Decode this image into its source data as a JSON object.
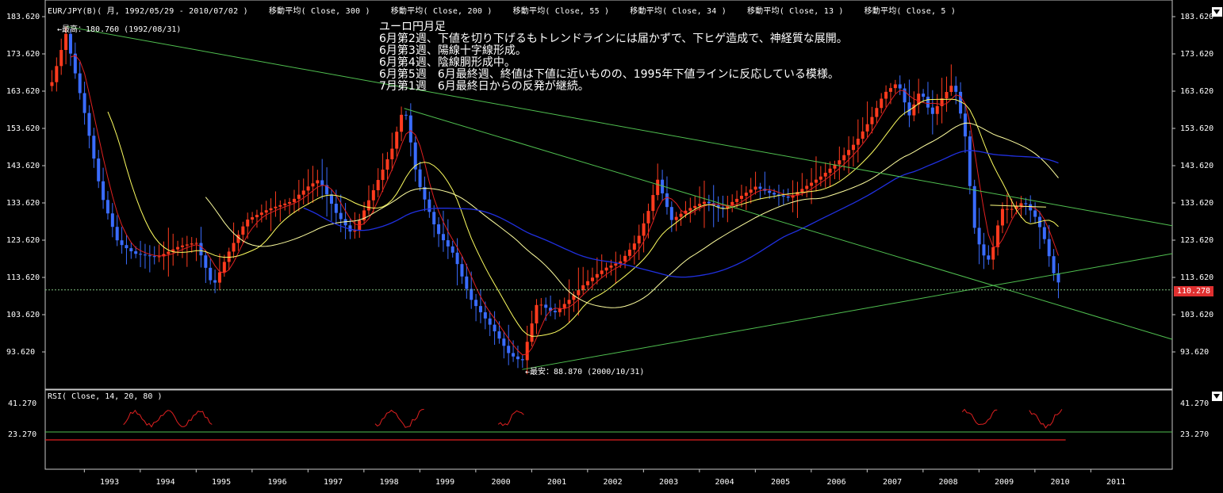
{
  "header": {
    "symbol": "EUR/JPY(B)( 月, 1992/05/29 - 2010/07/02 )",
    "ma_labels": [
      "移動平均( Close, 300 )",
      "移動平均( Close, 200 )",
      "移動平均( Close, 55 )",
      "移動平均( Close, 34 )",
      "移動平均( Close, 13 )",
      "移動平均( Close, 5 )"
    ]
  },
  "annotation": {
    "lines": [
      "ユーロ円月足",
      "6月第2週、下値を切り下げるもトレンドラインには届かずで、下ヒゲ造成で、神経質な展開。",
      "6月第3週、陽線十字線形成。",
      "6月第4週、陰線胴形成中。",
      "6月第5週　6月最終週、終値は下値に近いものの、1995年下値ラインに反応している模様。",
      "7月第1週　6月最終日からの反発が継続。"
    ]
  },
  "markers": {
    "high": "←最高：180.760 (1992/08/31)",
    "low": "←最安：88.870 (2000/10/31)"
  },
  "current_price": "110.278",
  "rsi": {
    "header": "RSI( Close, 14, 20, 80 )",
    "tick_labels": [
      "41.270",
      "23.270"
    ]
  },
  "colors": {
    "up": "#ff3b1e",
    "down": "#3a6cff",
    "ma5": "#e02020",
    "ma13": "#ffff60",
    "ma34": "#ffffa0",
    "ma55": "#2030e0",
    "trendline": "#50c050",
    "grid_frame": "#c8c8c8"
  },
  "chart_data": {
    "type": "candlestick",
    "title": "EUR/JPY(B)( 月, 1992/05/29 - 2010/07/02 )",
    "price_ticks": [
      183.62,
      173.62,
      163.62,
      153.62,
      143.62,
      133.62,
      123.62,
      113.62,
      103.62,
      93.62
    ],
    "price_tick_labels": [
      "183.620",
      "173.620",
      "163.620",
      "153.620",
      "143.620",
      "133.620",
      "123.620",
      "113.620",
      "103.620",
      "93.620"
    ],
    "x_labels": [
      "1993",
      "1994",
      "1995",
      "1996",
      "1997",
      "1998",
      "1999",
      "2000",
      "2001",
      "2002",
      "2003",
      "2004",
      "2005",
      "2006",
      "2007",
      "2008",
      "2009",
      "2010",
      "2011"
    ],
    "ylim": [
      83.0,
      186.0
    ],
    "key_points": [
      {
        "t": 1992.4,
        "v": 165
      },
      {
        "t": 1992.67,
        "v": 179
      },
      {
        "t": 1993.0,
        "v": 158
      },
      {
        "t": 1993.3,
        "v": 136
      },
      {
        "t": 1993.6,
        "v": 123
      },
      {
        "t": 1993.9,
        "v": 120
      },
      {
        "t": 1994.3,
        "v": 119
      },
      {
        "t": 1994.7,
        "v": 122
      },
      {
        "t": 1995.0,
        "v": 123
      },
      {
        "t": 1995.3,
        "v": 111
      },
      {
        "t": 1995.6,
        "v": 121
      },
      {
        "t": 1995.9,
        "v": 129
      },
      {
        "t": 1996.3,
        "v": 132
      },
      {
        "t": 1996.7,
        "v": 134
      },
      {
        "t": 1997.0,
        "v": 138
      },
      {
        "t": 1997.2,
        "v": 140
      },
      {
        "t": 1997.5,
        "v": 131
      },
      {
        "t": 1997.8,
        "v": 125
      },
      {
        "t": 1998.2,
        "v": 138
      },
      {
        "t": 1998.5,
        "v": 148
      },
      {
        "t": 1998.72,
        "v": 160
      },
      {
        "t": 1998.95,
        "v": 140
      },
      {
        "t": 1999.3,
        "v": 126
      },
      {
        "t": 1999.6,
        "v": 120
      },
      {
        "t": 1999.9,
        "v": 108
      },
      {
        "t": 2000.3,
        "v": 100
      },
      {
        "t": 2000.6,
        "v": 93
      },
      {
        "t": 2000.83,
        "v": 91
      },
      {
        "t": 2001.1,
        "v": 107
      },
      {
        "t": 2001.4,
        "v": 104
      },
      {
        "t": 2001.7,
        "v": 108
      },
      {
        "t": 2001.95,
        "v": 112
      },
      {
        "t": 2002.3,
        "v": 116
      },
      {
        "t": 2002.6,
        "v": 118
      },
      {
        "t": 2002.9,
        "v": 124
      },
      {
        "t": 2003.1,
        "v": 132
      },
      {
        "t": 2003.25,
        "v": 140
      },
      {
        "t": 2003.5,
        "v": 129
      },
      {
        "t": 2003.8,
        "v": 132
      },
      {
        "t": 2004.1,
        "v": 134
      },
      {
        "t": 2004.4,
        "v": 132
      },
      {
        "t": 2004.7,
        "v": 135
      },
      {
        "t": 2005.0,
        "v": 138
      },
      {
        "t": 2005.3,
        "v": 136
      },
      {
        "t": 2005.6,
        "v": 135
      },
      {
        "t": 2005.9,
        "v": 138
      },
      {
        "t": 2006.2,
        "v": 141
      },
      {
        "t": 2006.5,
        "v": 145
      },
      {
        "t": 2006.8,
        "v": 150
      },
      {
        "t": 2007.1,
        "v": 157
      },
      {
        "t": 2007.3,
        "v": 163
      },
      {
        "t": 2007.55,
        "v": 166
      },
      {
        "t": 2007.75,
        "v": 157
      },
      {
        "t": 2007.95,
        "v": 164
      },
      {
        "t": 2008.15,
        "v": 157
      },
      {
        "t": 2008.35,
        "v": 162
      },
      {
        "t": 2008.55,
        "v": 166
      },
      {
        "t": 2008.75,
        "v": 152
      },
      {
        "t": 2008.9,
        "v": 128
      },
      {
        "t": 2009.05,
        "v": 120
      },
      {
        "t": 2009.2,
        "v": 118
      },
      {
        "t": 2009.4,
        "v": 132
      },
      {
        "t": 2009.6,
        "v": 132
      },
      {
        "t": 2009.8,
        "v": 134
      },
      {
        "t": 2010.0,
        "v": 130
      },
      {
        "t": 2010.15,
        "v": 125
      },
      {
        "t": 2010.35,
        "v": 114
      },
      {
        "t": 2010.5,
        "v": 110.3
      }
    ]
  }
}
